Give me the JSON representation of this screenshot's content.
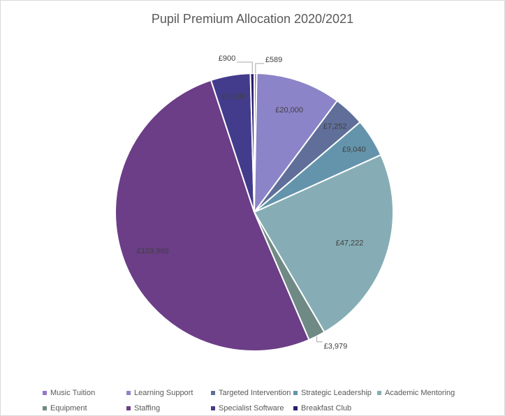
{
  "chart_data": {
    "type": "pie",
    "title": "Pupil Premium Allocation 2020/2021",
    "categories": [
      "Music Tuition",
      "Learning Support",
      "Targeted Intervention",
      "Strategic Leadership",
      "Academic Mentoring",
      "Equipment",
      "Staffing",
      "Specialist Software",
      "Breakfast Club"
    ],
    "values": [
      589,
      20000,
      7252,
      9040,
      47222,
      3979,
      103968,
      9300,
      900
    ],
    "labels": [
      "£589",
      "£20,000",
      "£7,252",
      "£9,040",
      "£47,222",
      "£3,979",
      "£103,968",
      "£9,300",
      "£900"
    ],
    "colors": [
      "#9575c9",
      "#8b84c8",
      "#5f6f99",
      "#6494ac",
      "#86adb5",
      "#6f8a84",
      "#6b3e87",
      "#433c8c",
      "#2b1c6e"
    ],
    "start_angle": "12 o'clock",
    "direction": "clockwise",
    "legend_position": "bottom",
    "legend_layout": [
      [
        "Music Tuition",
        "Learning Support",
        "Targeted Intervention",
        "Strategic Leadership",
        "Academic Mentoring"
      ],
      [
        "Equipment",
        "Staffing",
        "Specialist Software",
        "Breakfast Club"
      ]
    ]
  }
}
